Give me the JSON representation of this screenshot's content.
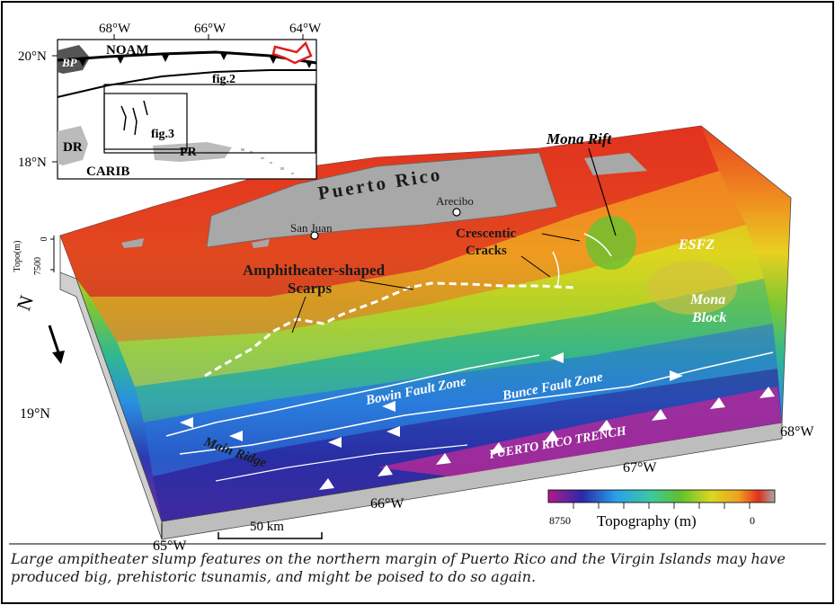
{
  "inset": {
    "lon_labels": [
      "68°W",
      "66°W",
      "64°W"
    ],
    "lat_labels": [
      "20°N",
      "18°N"
    ],
    "regions": {
      "bp": "BP",
      "noam": "NOAM",
      "dr": "DR",
      "pr": "PR",
      "carib": "CARIB"
    },
    "figure_refs": {
      "fig2": "fig.2",
      "fig3": "fig.3"
    }
  },
  "map": {
    "title_puerto_rico": "Puerto Rico",
    "cities": {
      "san_juan": "San Juan",
      "arecibo": "Arecibo"
    },
    "features": {
      "mona_rift": "Mona Rift",
      "crescentic": "Crescentic",
      "cracks": "Cracks",
      "amphitheater": "Amphitheater-shaped",
      "scarps": "Scarps",
      "esfz": "ESFZ",
      "mona": "Mona",
      "block": "Block",
      "bowin": "Bowin Fault Zone",
      "bunce": "Bunce Fault Zone",
      "trench": "PUERTO RICO TRENCH",
      "main_ridge": "Main Ridge"
    },
    "axis_labels": {
      "lat_19": "19°N",
      "lon_65": "65°W",
      "lon_66": "66°W",
      "lon_67": "67°W",
      "lon_68": "68°W"
    },
    "topo_axis": {
      "title": "Topo(m)",
      "ticks": [
        "0",
        "7500"
      ]
    },
    "north": "N",
    "scale_bar": "50 km",
    "legend": {
      "title": "Topography (m)",
      "min": "8750",
      "max": "0",
      "colors": [
        "#b01a8a",
        "#2a2aa8",
        "#2aa0e8",
        "#3cc8a0",
        "#60c030",
        "#d8d820",
        "#f0a020",
        "#e03020",
        "#a8a8a8"
      ]
    }
  },
  "caption": "Large ampitheater slump features on the northern margin of Puerto Rico and the Virgin Islands may have produced big, prehistoric tsunamis, and might be poised to do so again."
}
